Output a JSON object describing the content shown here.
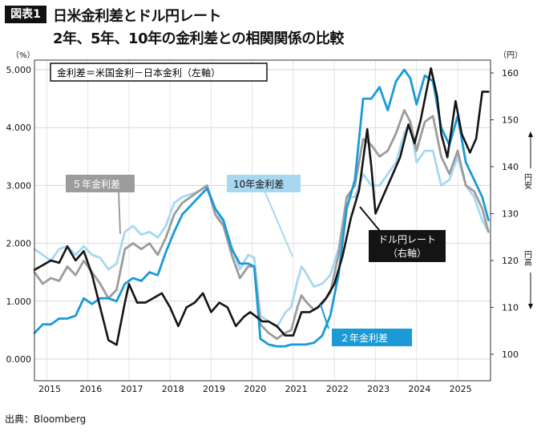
{
  "header": {
    "tag": "図表1",
    "title_line1": "日米金利差とドル円レート",
    "title_line2": "2年、5年、10年の金利差との相関関係の比較"
  },
  "legend_box": "金利差＝米国金利－日本金利（左軸）",
  "annotations": {
    "five_year": "５年金利差",
    "ten_year": "10年金利差",
    "two_year": "２年金利差",
    "usdjpy_line1": "ドル円レート",
    "usdjpy_line2": "（右軸）",
    "right_up": "円安",
    "right_down": "円高"
  },
  "source": "出典：Bloomberg",
  "colors": {
    "two_year": "#1b9ad6",
    "five_year": "#9c9c9c",
    "ten_year": "#a8d8ef",
    "usdjpy": "#141414"
  },
  "chart_data": {
    "type": "line",
    "x_ticks": [
      "2015",
      "2016",
      "2017",
      "2018",
      "2019",
      "2020",
      "2021",
      "2022",
      "2023",
      "2024",
      "2025"
    ],
    "xlim": [
      2014.7,
      2025.8
    ],
    "left_axis": {
      "unit": "（%）",
      "ylim": [
        0,
        5
      ],
      "ticks": [
        "0.000",
        "1.000",
        "2.000",
        "3.000",
        "4.000",
        "5.000"
      ]
    },
    "right_axis": {
      "unit": "（円）",
      "ylim": [
        97,
        163
      ],
      "ticks": [
        "100",
        "110",
        "120",
        "130",
        "140",
        "150",
        "160"
      ]
    },
    "series": [
      {
        "name": "10年金利差",
        "axis": "left",
        "color_key": "ten_year",
        "points": [
          [
            2014.7,
            1.9
          ],
          [
            2014.9,
            1.8
          ],
          [
            2015.1,
            1.7
          ],
          [
            2015.3,
            1.9
          ],
          [
            2015.5,
            1.95
          ],
          [
            2015.7,
            1.8
          ],
          [
            2015.9,
            1.95
          ],
          [
            2016.1,
            1.8
          ],
          [
            2016.3,
            1.75
          ],
          [
            2016.5,
            1.55
          ],
          [
            2016.7,
            1.65
          ],
          [
            2016.9,
            2.2
          ],
          [
            2017.1,
            2.3
          ],
          [
            2017.3,
            2.15
          ],
          [
            2017.5,
            2.2
          ],
          [
            2017.7,
            2.1
          ],
          [
            2017.9,
            2.3
          ],
          [
            2018.1,
            2.7
          ],
          [
            2018.3,
            2.8
          ],
          [
            2018.5,
            2.85
          ],
          [
            2018.7,
            2.9
          ],
          [
            2018.9,
            3.0
          ],
          [
            2019.1,
            2.6
          ],
          [
            2019.3,
            2.35
          ],
          [
            2019.5,
            1.95
          ],
          [
            2019.7,
            1.55
          ],
          [
            2019.9,
            1.8
          ],
          [
            2020.05,
            1.75
          ],
          [
            2020.2,
            0.75
          ],
          [
            2020.4,
            0.65
          ],
          [
            2020.6,
            0.55
          ],
          [
            2020.8,
            0.8
          ],
          [
            2020.95,
            0.9
          ],
          [
            2021.1,
            1.35
          ],
          [
            2021.2,
            1.6
          ],
          [
            2021.3,
            1.5
          ],
          [
            2021.5,
            1.25
          ],
          [
            2021.7,
            1.3
          ],
          [
            2021.9,
            1.45
          ],
          [
            2022.1,
            1.9
          ],
          [
            2022.3,
            2.8
          ],
          [
            2022.5,
            2.8
          ],
          [
            2022.7,
            3.2
          ],
          [
            2022.9,
            3.0
          ],
          [
            2023.1,
            3.0
          ],
          [
            2023.3,
            3.2
          ],
          [
            2023.5,
            3.4
          ],
          [
            2023.7,
            3.9
          ],
          [
            2023.85,
            4.1
          ],
          [
            2024.0,
            3.4
          ],
          [
            2024.2,
            3.6
          ],
          [
            2024.4,
            3.6
          ],
          [
            2024.6,
            3.0
          ],
          [
            2024.8,
            3.1
          ],
          [
            2025.0,
            3.5
          ],
          [
            2025.2,
            3.0
          ],
          [
            2025.4,
            2.8
          ],
          [
            2025.6,
            2.4
          ],
          [
            2025.75,
            2.2
          ]
        ]
      },
      {
        "name": "5年金利差",
        "axis": "left",
        "color_key": "five_year",
        "points": [
          [
            2014.7,
            1.5
          ],
          [
            2014.9,
            1.3
          ],
          [
            2015.1,
            1.4
          ],
          [
            2015.3,
            1.35
          ],
          [
            2015.5,
            1.6
          ],
          [
            2015.7,
            1.45
          ],
          [
            2015.9,
            1.7
          ],
          [
            2016.1,
            1.5
          ],
          [
            2016.3,
            1.3
          ],
          [
            2016.5,
            1.05
          ],
          [
            2016.7,
            1.2
          ],
          [
            2016.9,
            1.9
          ],
          [
            2017.1,
            2.0
          ],
          [
            2017.3,
            1.9
          ],
          [
            2017.5,
            2.0
          ],
          [
            2017.7,
            1.8
          ],
          [
            2017.9,
            2.1
          ],
          [
            2018.1,
            2.5
          ],
          [
            2018.3,
            2.7
          ],
          [
            2018.5,
            2.8
          ],
          [
            2018.7,
            2.9
          ],
          [
            2018.9,
            3.0
          ],
          [
            2019.1,
            2.5
          ],
          [
            2019.3,
            2.3
          ],
          [
            2019.5,
            1.8
          ],
          [
            2019.7,
            1.4
          ],
          [
            2019.9,
            1.6
          ],
          [
            2020.05,
            1.6
          ],
          [
            2020.2,
            0.6
          ],
          [
            2020.4,
            0.45
          ],
          [
            2020.6,
            0.35
          ],
          [
            2020.8,
            0.45
          ],
          [
            2020.95,
            0.5
          ],
          [
            2021.1,
            0.9
          ],
          [
            2021.2,
            1.1
          ],
          [
            2021.3,
            1.0
          ],
          [
            2021.5,
            0.85
          ],
          [
            2021.7,
            0.95
          ],
          [
            2021.9,
            1.15
          ],
          [
            2022.1,
            1.8
          ],
          [
            2022.3,
            2.8
          ],
          [
            2022.5,
            3.0
          ],
          [
            2022.7,
            3.8
          ],
          [
            2022.9,
            3.7
          ],
          [
            2023.1,
            3.5
          ],
          [
            2023.3,
            3.6
          ],
          [
            2023.5,
            3.9
          ],
          [
            2023.7,
            4.3
          ],
          [
            2023.85,
            4.1
          ],
          [
            2024.0,
            3.6
          ],
          [
            2024.2,
            4.1
          ],
          [
            2024.4,
            4.2
          ],
          [
            2024.6,
            3.5
          ],
          [
            2024.8,
            3.2
          ],
          [
            2025.0,
            3.6
          ],
          [
            2025.2,
            3.0
          ],
          [
            2025.4,
            2.9
          ],
          [
            2025.6,
            2.6
          ],
          [
            2025.75,
            2.2
          ]
        ]
      },
      {
        "name": "2年金利差",
        "axis": "left",
        "color_key": "two_year",
        "points": [
          [
            2014.7,
            0.45
          ],
          [
            2014.9,
            0.6
          ],
          [
            2015.1,
            0.6
          ],
          [
            2015.3,
            0.7
          ],
          [
            2015.5,
            0.7
          ],
          [
            2015.7,
            0.75
          ],
          [
            2015.9,
            1.05
          ],
          [
            2016.1,
            0.95
          ],
          [
            2016.3,
            1.05
          ],
          [
            2016.5,
            1.05
          ],
          [
            2016.7,
            1.0
          ],
          [
            2016.9,
            1.3
          ],
          [
            2017.1,
            1.4
          ],
          [
            2017.3,
            1.35
          ],
          [
            2017.5,
            1.5
          ],
          [
            2017.7,
            1.45
          ],
          [
            2017.9,
            1.85
          ],
          [
            2018.1,
            2.2
          ],
          [
            2018.3,
            2.5
          ],
          [
            2018.5,
            2.65
          ],
          [
            2018.7,
            2.8
          ],
          [
            2018.9,
            2.95
          ],
          [
            2019.1,
            2.6
          ],
          [
            2019.3,
            2.4
          ],
          [
            2019.5,
            1.9
          ],
          [
            2019.7,
            1.65
          ],
          [
            2019.9,
            1.65
          ],
          [
            2020.05,
            1.6
          ],
          [
            2020.2,
            0.35
          ],
          [
            2020.4,
            0.25
          ],
          [
            2020.6,
            0.22
          ],
          [
            2020.8,
            0.22
          ],
          [
            2020.95,
            0.25
          ],
          [
            2021.1,
            0.25
          ],
          [
            2021.3,
            0.25
          ],
          [
            2021.5,
            0.28
          ],
          [
            2021.7,
            0.4
          ],
          [
            2021.9,
            0.75
          ],
          [
            2022.1,
            1.45
          ],
          [
            2022.3,
            2.6
          ],
          [
            2022.5,
            3.1
          ],
          [
            2022.7,
            4.5
          ],
          [
            2022.9,
            4.5
          ],
          [
            2023.1,
            4.7
          ],
          [
            2023.3,
            4.3
          ],
          [
            2023.5,
            4.8
          ],
          [
            2023.7,
            5.0
          ],
          [
            2023.85,
            4.85
          ],
          [
            2024.0,
            4.4
          ],
          [
            2024.2,
            4.9
          ],
          [
            2024.4,
            4.8
          ],
          [
            2024.6,
            4.0
          ],
          [
            2024.8,
            3.7
          ],
          [
            2025.0,
            4.2
          ],
          [
            2025.2,
            3.4
          ],
          [
            2025.4,
            3.1
          ],
          [
            2025.6,
            2.8
          ],
          [
            2025.75,
            2.4
          ]
        ]
      },
      {
        "name": "ドル円レート",
        "axis": "right",
        "color_key": "usdjpy",
        "points": [
          [
            2014.7,
            118
          ],
          [
            2014.9,
            119
          ],
          [
            2015.1,
            120
          ],
          [
            2015.3,
            119.5
          ],
          [
            2015.5,
            123
          ],
          [
            2015.7,
            120
          ],
          [
            2015.9,
            122
          ],
          [
            2016.1,
            117
          ],
          [
            2016.3,
            110
          ],
          [
            2016.5,
            103
          ],
          [
            2016.7,
            102
          ],
          [
            2016.9,
            111
          ],
          [
            2017.0,
            115
          ],
          [
            2017.2,
            111
          ],
          [
            2017.4,
            111
          ],
          [
            2017.6,
            112
          ],
          [
            2017.8,
            113
          ],
          [
            2018.0,
            110
          ],
          [
            2018.2,
            106
          ],
          [
            2018.4,
            110
          ],
          [
            2018.6,
            111
          ],
          [
            2018.8,
            113
          ],
          [
            2019.0,
            109
          ],
          [
            2019.2,
            111
          ],
          [
            2019.4,
            110
          ],
          [
            2019.6,
            106
          ],
          [
            2019.8,
            108
          ],
          [
            2019.95,
            109
          ],
          [
            2020.1,
            108
          ],
          [
            2020.25,
            107
          ],
          [
            2020.4,
            107
          ],
          [
            2020.6,
            106
          ],
          [
            2020.8,
            104
          ],
          [
            2021.0,
            104
          ],
          [
            2021.2,
            109
          ],
          [
            2021.4,
            109
          ],
          [
            2021.6,
            110
          ],
          [
            2021.8,
            112
          ],
          [
            2022.0,
            115
          ],
          [
            2022.2,
            121
          ],
          [
            2022.4,
            129
          ],
          [
            2022.6,
            135
          ],
          [
            2022.8,
            148
          ],
          [
            2022.9,
            140
          ],
          [
            2023.0,
            130
          ],
          [
            2023.2,
            134
          ],
          [
            2023.4,
            138
          ],
          [
            2023.6,
            142
          ],
          [
            2023.8,
            149
          ],
          [
            2023.95,
            145
          ],
          [
            2024.1,
            150
          ],
          [
            2024.35,
            161
          ],
          [
            2024.5,
            155
          ],
          [
            2024.6,
            147
          ],
          [
            2024.75,
            142
          ],
          [
            2024.95,
            154
          ],
          [
            2025.1,
            147
          ],
          [
            2025.3,
            143
          ],
          [
            2025.45,
            146
          ],
          [
            2025.6,
            156
          ],
          [
            2025.75,
            156
          ]
        ]
      }
    ]
  }
}
